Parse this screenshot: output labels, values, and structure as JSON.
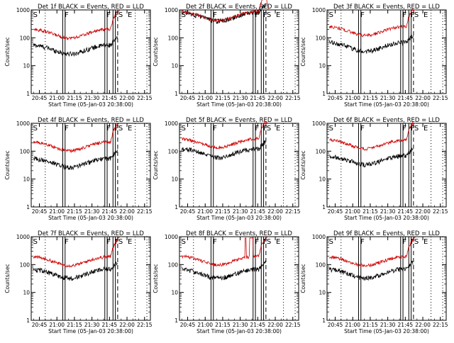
{
  "chart_data": {
    "type": "line",
    "layout": "3x3 grid of detector panels",
    "yscale": "log",
    "ylim": [
      1,
      1000
    ],
    "ytick_labels": [
      "1",
      "10",
      "100",
      "1000"
    ],
    "ylabel": "Counts/sec",
    "xlabel": "Start Time (05-Jan-03 20:38:00)",
    "xtick_labels": [
      "20:45",
      "21:00",
      "21:15",
      "21:30",
      "21:45",
      "22:00",
      "22:15"
    ],
    "xlim": [
      "20:38",
      "22:20"
    ],
    "colors": {
      "events": "#000000",
      "lld": "#d00000"
    },
    "flag_labels": {
      "s": "S",
      "f": "F",
      "e": "E"
    },
    "panels": [
      {
        "title": "Det 1f BLACK = Events, RED = LLD",
        "events_level": 40,
        "lld_level": 160,
        "spike": false
      },
      {
        "title": "Det 2f BLACK = Events, RED = LLD",
        "events_level": 600,
        "lld_level": 680,
        "spike": false
      },
      {
        "title": "Det 3f BLACK = Events, RED = LLD",
        "events_level": 50,
        "lld_level": 200,
        "spike": false
      },
      {
        "title": "Det 4f BLACK = Events, RED = LLD",
        "events_level": 40,
        "lld_level": 170,
        "spike": false
      },
      {
        "title": "Det 5f BLACK = Events, RED = LLD",
        "events_level": 90,
        "lld_level": 220,
        "spike": false
      },
      {
        "title": "Det 6f BLACK = Events, RED = LLD",
        "events_level": 50,
        "lld_level": 200,
        "spike": false
      },
      {
        "title": "Det 7f BLACK = Events, RED = LLD",
        "events_level": 50,
        "lld_level": 150,
        "spike": false
      },
      {
        "title": "Det 8f BLACK = Events, RED = LLD",
        "events_level": 50,
        "lld_level": 160,
        "spike": true
      },
      {
        "title": "Det 9f BLACK = Events, RED = LLD",
        "events_level": 50,
        "lld_level": 150,
        "spike": false
      }
    ]
  }
}
